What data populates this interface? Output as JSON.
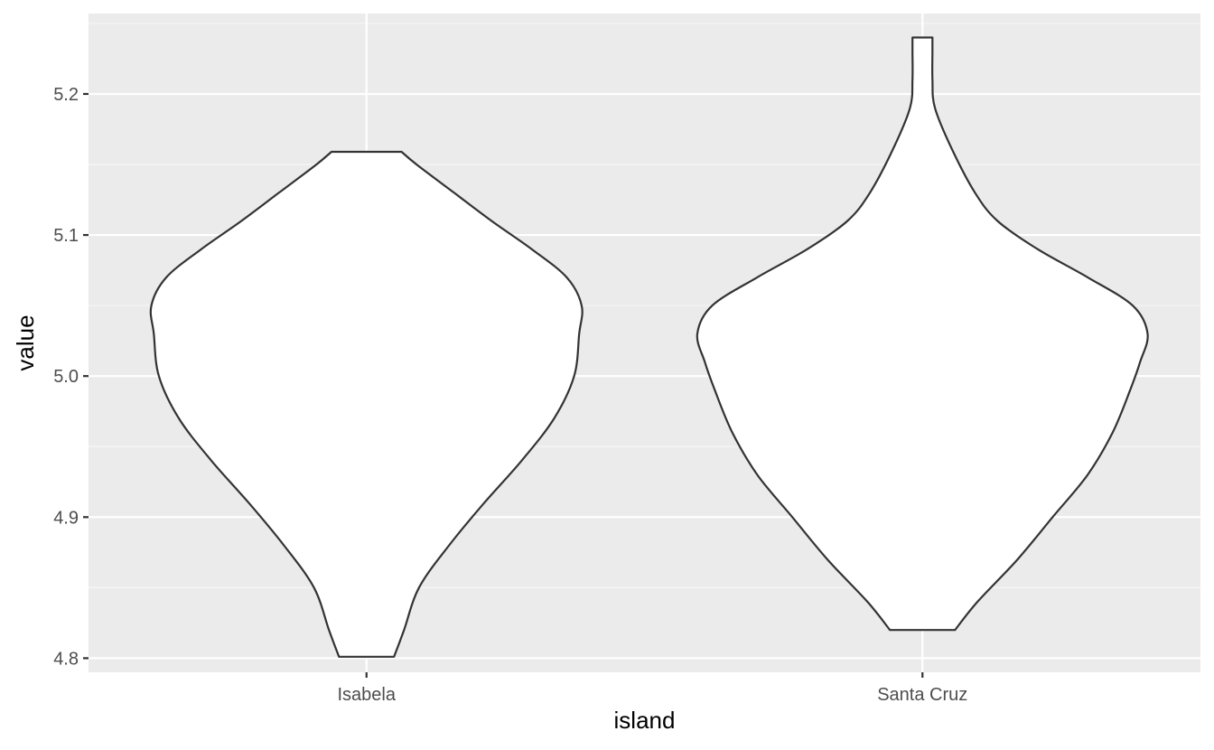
{
  "chart_data": {
    "type": "violin",
    "xlabel": "island",
    "ylabel": "value",
    "categories": [
      "Isabela",
      "Santa Cruz"
    ],
    "ylim": [
      4.79,
      5.257
    ],
    "y_ticks": [
      4.8,
      4.9,
      5.0,
      5.1,
      5.2
    ],
    "y_tick_labels": [
      "4.8",
      "4.9",
      "5.0",
      "5.1",
      "5.2"
    ],
    "grid": true,
    "legend": "none",
    "violins": [
      {
        "category": "Isabela",
        "min": 4.801,
        "max": 5.159,
        "density_profile": [
          {
            "y": 4.801,
            "halfwidth": 0.11
          },
          {
            "y": 4.82,
            "halfwidth": 0.15
          },
          {
            "y": 4.85,
            "halfwidth": 0.21
          },
          {
            "y": 4.88,
            "halfwidth": 0.33
          },
          {
            "y": 4.91,
            "halfwidth": 0.47
          },
          {
            "y": 4.94,
            "halfwidth": 0.62
          },
          {
            "y": 4.97,
            "halfwidth": 0.75
          },
          {
            "y": 5.0,
            "halfwidth": 0.83
          },
          {
            "y": 5.03,
            "halfwidth": 0.85
          },
          {
            "y": 5.05,
            "halfwidth": 0.86
          },
          {
            "y": 5.07,
            "halfwidth": 0.8
          },
          {
            "y": 5.09,
            "halfwidth": 0.66
          },
          {
            "y": 5.11,
            "halfwidth": 0.5
          },
          {
            "y": 5.13,
            "halfwidth": 0.35
          },
          {
            "y": 5.15,
            "halfwidth": 0.2
          },
          {
            "y": 5.159,
            "halfwidth": 0.14
          }
        ]
      },
      {
        "category": "Santa Cruz",
        "min": 4.82,
        "max": 5.24,
        "density_profile": [
          {
            "y": 4.82,
            "halfwidth": 0.13
          },
          {
            "y": 4.84,
            "halfwidth": 0.22
          },
          {
            "y": 4.87,
            "halfwidth": 0.38
          },
          {
            "y": 4.9,
            "halfwidth": 0.52
          },
          {
            "y": 4.93,
            "halfwidth": 0.66
          },
          {
            "y": 4.96,
            "halfwidth": 0.76
          },
          {
            "y": 4.99,
            "halfwidth": 0.83
          },
          {
            "y": 5.01,
            "halfwidth": 0.87
          },
          {
            "y": 5.03,
            "halfwidth": 0.9
          },
          {
            "y": 5.05,
            "halfwidth": 0.84
          },
          {
            "y": 5.07,
            "halfwidth": 0.66
          },
          {
            "y": 5.09,
            "halfwidth": 0.46
          },
          {
            "y": 5.11,
            "halfwidth": 0.3
          },
          {
            "y": 5.13,
            "halfwidth": 0.21
          },
          {
            "y": 5.16,
            "halfwidth": 0.12
          },
          {
            "y": 5.19,
            "halfwidth": 0.05
          },
          {
            "y": 5.21,
            "halfwidth": 0.04
          },
          {
            "y": 5.23,
            "halfwidth": 0.04
          },
          {
            "y": 5.24,
            "halfwidth": 0.04
          }
        ]
      }
    ],
    "colors": {
      "panel_background": "#ebebeb",
      "grid_major": "#ffffff",
      "grid_minor": "#f7f7f7",
      "violin_fill": "#ffffff",
      "violin_outline": "#333333",
      "tick_text": "#4d4d4d",
      "axis_title": "#000000"
    }
  }
}
